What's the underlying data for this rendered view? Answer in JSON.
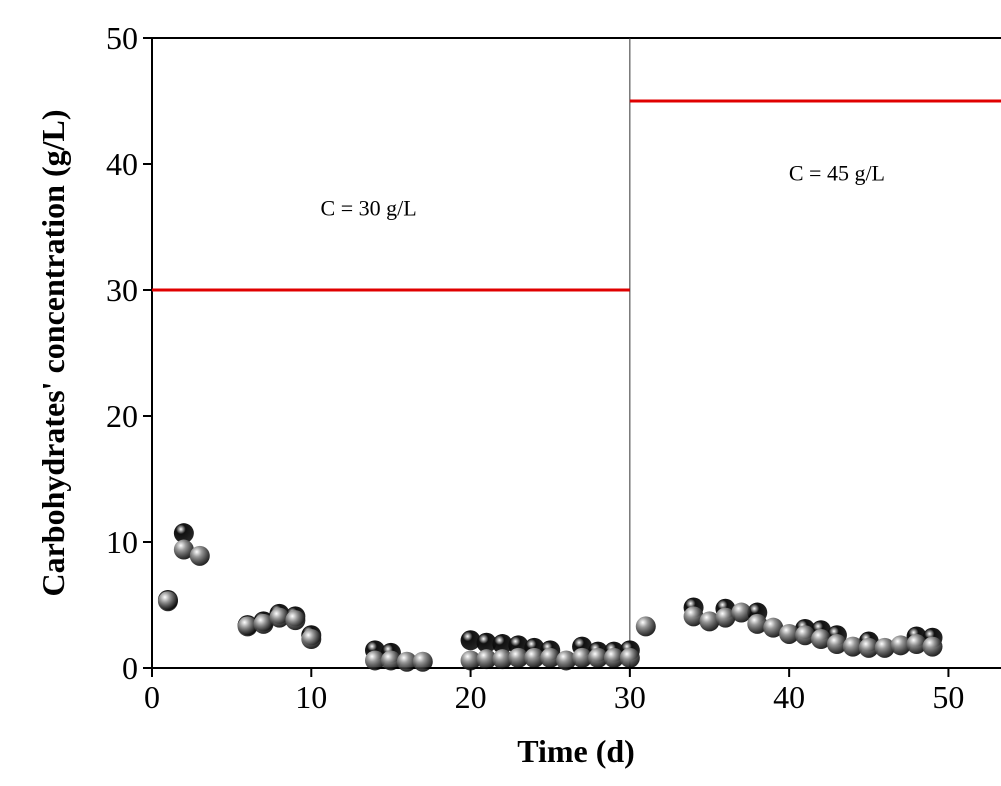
{
  "chart_data": {
    "type": "scatter",
    "x_label": "Time (d)",
    "y_label": "Carbohydrates' concentration (g/L)",
    "xlim": [
      0,
      53.3
    ],
    "ylim": [
      0,
      50
    ],
    "xticks": [
      0,
      10,
      20,
      30,
      40,
      50
    ],
    "yticks": [
      0,
      10,
      20,
      30,
      40,
      50
    ],
    "vline": 30,
    "reference_lines": [
      {
        "x": [
          0,
          30
        ],
        "y": 30,
        "color": "#e00000"
      },
      {
        "x": [
          30,
          53.3
        ],
        "y": 45,
        "color": "#e00000"
      }
    ],
    "annotations": [
      {
        "text": "C = 30 g/L",
        "x": 13.6,
        "y": 35.9
      },
      {
        "text": "C = 45 g/L",
        "x": 43,
        "y": 38.7
      }
    ],
    "series": [
      {
        "color": "#111111",
        "x": [
          1,
          2,
          6,
          7,
          8,
          9,
          10,
          14,
          15,
          20,
          21,
          22,
          23,
          24,
          25,
          27,
          28,
          29,
          30,
          34,
          36,
          38,
          41,
          42,
          43,
          45,
          48,
          49
        ],
        "values": [
          5.4,
          10.7,
          3.4,
          3.7,
          4.3,
          4.1,
          2.6,
          1.4,
          1.2,
          2.2,
          2.0,
          1.9,
          1.8,
          1.6,
          1.4,
          1.7,
          1.3,
          1.3,
          1.4,
          4.8,
          4.7,
          4.4,
          3.1,
          3.0,
          2.6,
          2.1,
          2.5,
          2.4
        ]
      },
      {
        "color": "#9a9a9a",
        "x": [
          1,
          2,
          3,
          6,
          7,
          8,
          9,
          10,
          14,
          15,
          16,
          17,
          20,
          21,
          22,
          23,
          24,
          25,
          26,
          27,
          28,
          29,
          30,
          31,
          34,
          35,
          36,
          37,
          38,
          39,
          40,
          41,
          42,
          43,
          44,
          45,
          46,
          47,
          48,
          49
        ],
        "values": [
          5.3,
          9.4,
          8.9,
          3.3,
          3.5,
          4.0,
          3.8,
          2.3,
          0.6,
          0.6,
          0.5,
          0.5,
          0.6,
          0.7,
          0.7,
          0.8,
          0.8,
          0.8,
          0.6,
          0.8,
          0.8,
          0.8,
          0.8,
          3.3,
          4.1,
          3.7,
          4.0,
          4.4,
          3.5,
          3.2,
          2.7,
          2.6,
          2.3,
          1.9,
          1.7,
          1.6,
          1.6,
          1.8,
          1.9,
          1.7
        ]
      }
    ]
  }
}
